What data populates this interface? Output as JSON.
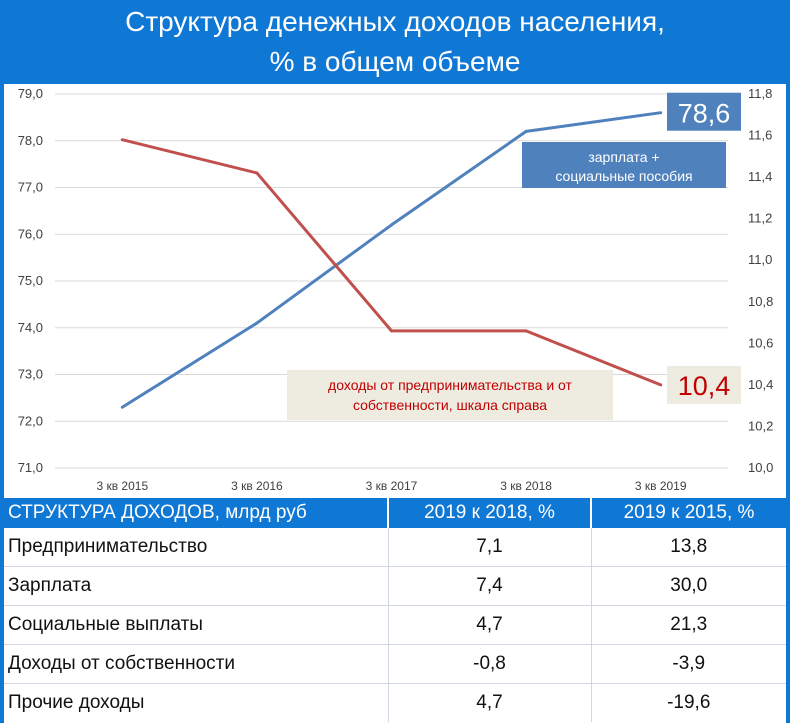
{
  "header": {
    "title_line1": "Структура денежных доходов населения,",
    "title_line2": "% в общем объеме"
  },
  "colors": {
    "header_bg": "#0f77d4",
    "wage_line": "#4f81bd",
    "business_line": "#c0504d"
  },
  "chart_data": {
    "type": "line",
    "categories": [
      "3 кв 2015",
      "3 кв 2016",
      "3 кв 2017",
      "3 кв 2018",
      "3 кв 2019"
    ],
    "series": [
      {
        "name": "зарплата + социальные пособия",
        "axis": "left",
        "values": [
          72.3,
          74.1,
          76.2,
          78.2,
          78.6
        ]
      },
      {
        "name": "доходы от предпринимательства и от собственности, шкала справа",
        "axis": "right",
        "values": [
          11.58,
          11.42,
          10.66,
          10.66,
          10.4
        ]
      }
    ],
    "y_left": {
      "range": [
        71.0,
        79.0
      ],
      "ticks": [
        "71,0",
        "72,0",
        "73,0",
        "74,0",
        "75,0",
        "76,0",
        "77,0",
        "78,0",
        "79,0"
      ]
    },
    "y_right": {
      "range": [
        10.0,
        11.8
      ],
      "ticks": [
        "10,0",
        "10,2",
        "10,4",
        "10,6",
        "10,8",
        "11,0",
        "11,2",
        "11,4",
        "11,6",
        "11,8"
      ]
    },
    "grid": true,
    "end_labels": {
      "wage": "78,6",
      "business": "10,4"
    },
    "annotations": {
      "wage_line1": "зарплата +",
      "wage_line2": "социальные пособия",
      "business_line1": "доходы от предпринимательства и от",
      "business_line2": "собственности, шкала справа"
    }
  },
  "table": {
    "headers": [
      "СТРУКТУРА ДОХОДОВ, млрд руб",
      "2019 к 2018, %",
      "2019 к 2015, %"
    ],
    "rows": [
      [
        "Предпринимательство",
        "7,1",
        "13,8"
      ],
      [
        "Зарплата",
        "7,4",
        "30,0"
      ],
      [
        "Социальные выплаты",
        "4,7",
        "21,3"
      ],
      [
        "Доходы от собственности",
        "-0,8",
        "-3,9"
      ],
      [
        "Прочие доходы",
        "4,7",
        "-19,6"
      ]
    ]
  }
}
